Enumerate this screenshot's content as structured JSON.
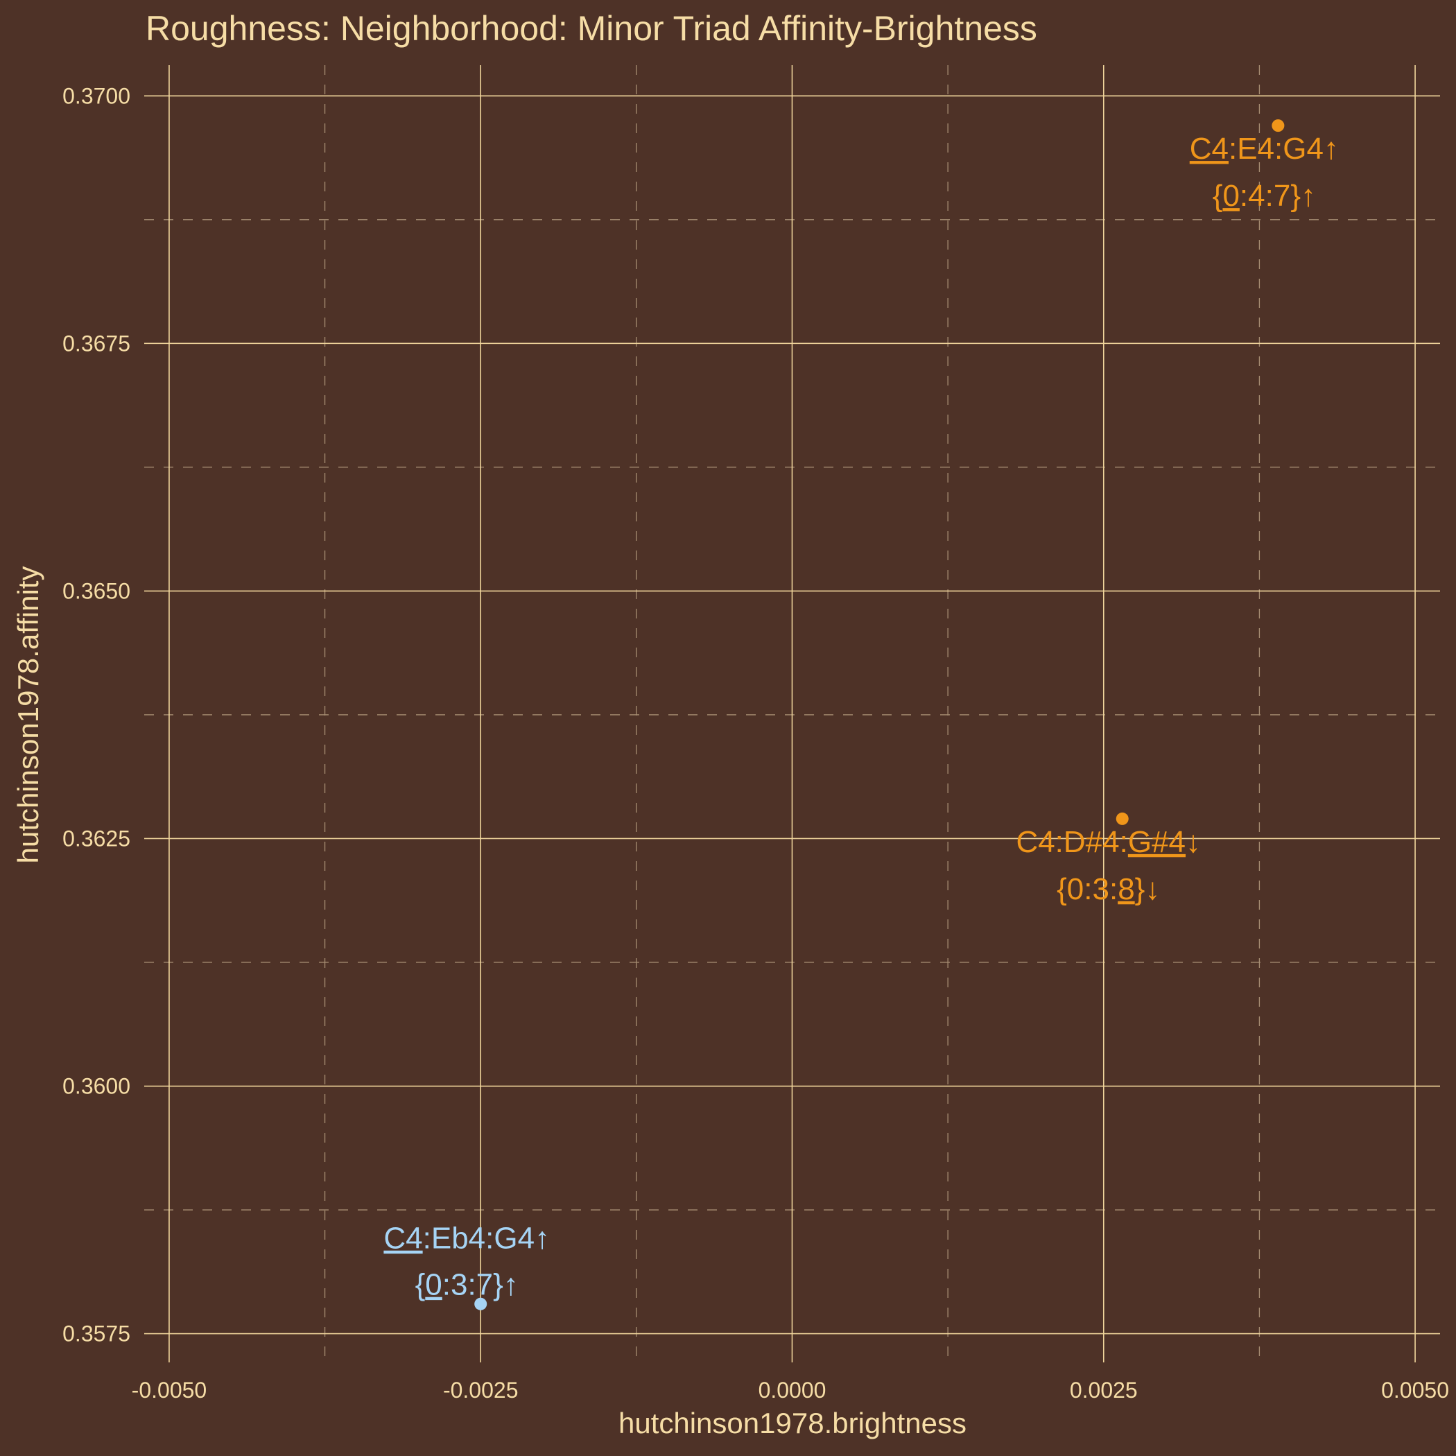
{
  "chart_data": {
    "type": "scatter",
    "title": "Roughness: Neighborhood: Minor Triad Affinity-Brightness",
    "xlabel": "hutchinson1978.brightness",
    "ylabel": "hutchinson1978.affinity",
    "xlim": [
      -0.0052,
      0.0052
    ],
    "ylim": [
      0.35721,
      0.37031
    ],
    "x_ticks": [
      -0.005,
      -0.0025,
      0.0,
      0.0025,
      0.005
    ],
    "x_tick_labels": [
      "-0.0050",
      "-0.0025",
      "0.0000",
      "0.0025",
      "0.0050"
    ],
    "y_ticks": [
      0.3575,
      0.36,
      0.3625,
      0.365,
      0.3675,
      0.37
    ],
    "y_tick_labels": [
      "0.3575",
      "0.3600",
      "0.3625",
      "0.3650",
      "0.3675",
      "0.3700"
    ],
    "x_minor_ticks": [
      -0.00375,
      -0.00125,
      0.00125,
      0.00375
    ],
    "y_minor_ticks": [
      0.35875,
      0.36125,
      0.36375,
      0.36625,
      0.36875
    ],
    "grid": true,
    "legend": "none",
    "colors": {
      "background": "#4e3227",
      "text": "#f6dda6",
      "grid_major": "#f1d69c",
      "grid_minor": "#a88f74",
      "minor_triad": "#a6d4f5",
      "neighbor": "#f0961a"
    },
    "points": [
      {
        "x": -0.0025,
        "y": 0.3578,
        "color": "#a6d4f5",
        "label_pos": "above",
        "line1": [
          {
            "t": "C4",
            "u": true
          },
          {
            "t": ":Eb4:G4",
            "u": false
          },
          {
            "t": "↑",
            "u": false
          }
        ],
        "line2": [
          {
            "t": "{",
            "u": false
          },
          {
            "t": "0",
            "u": true
          },
          {
            "t": ":3:7}",
            "u": false
          },
          {
            "t": "↑",
            "u": false
          }
        ]
      },
      {
        "x": 0.00265,
        "y": 0.3627,
        "color": "#f0961a",
        "label_pos": "below",
        "line1": [
          {
            "t": "C4:D#4:",
            "u": false
          },
          {
            "t": "G#4",
            "u": true
          },
          {
            "t": "↓",
            "u": false
          }
        ],
        "line2": [
          {
            "t": "{0:3:",
            "u": false
          },
          {
            "t": "8",
            "u": true
          },
          {
            "t": "}",
            "u": false
          },
          {
            "t": "↓",
            "u": false
          }
        ]
      },
      {
        "x": 0.0039,
        "y": 0.3697,
        "color": "#f0961a",
        "label_pos": "below",
        "line1": [
          {
            "t": "C4",
            "u": true
          },
          {
            "t": ":E4:G4",
            "u": false
          },
          {
            "t": "↑",
            "u": false
          }
        ],
        "line2": [
          {
            "t": "{",
            "u": false
          },
          {
            "t": "0",
            "u": true
          },
          {
            "t": ":4:7}",
            "u": false
          },
          {
            "t": "↑",
            "u": false
          }
        ]
      }
    ]
  }
}
